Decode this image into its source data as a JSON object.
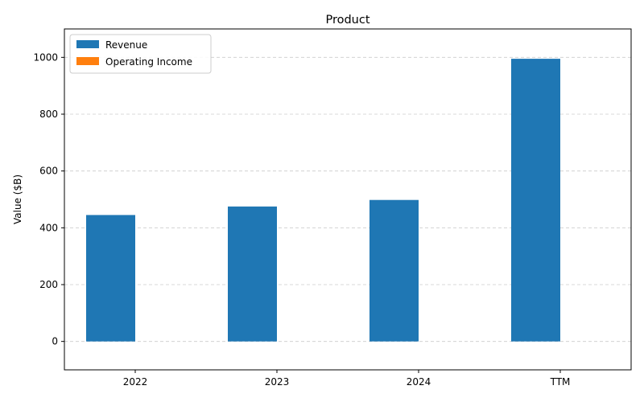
{
  "chart_data": {
    "type": "bar",
    "title": "Product",
    "xlabel": "",
    "ylabel": "Value ($B)",
    "categories": [
      "2022",
      "2023",
      "2024",
      "TTM"
    ],
    "series": [
      {
        "name": "Revenue",
        "color": "#1f77b4",
        "values": [
          445,
          475,
          498,
          995
        ]
      },
      {
        "name": "Operating Income",
        "color": "#ff7f0e",
        "values": [
          0,
          0,
          0,
          0
        ]
      }
    ],
    "ylim": [
      -100,
      1100
    ],
    "yticks": [
      "0",
      "200",
      "400",
      "600",
      "800",
      "1000"
    ],
    "grid": "y-dashed",
    "legend_position": "top-left"
  }
}
